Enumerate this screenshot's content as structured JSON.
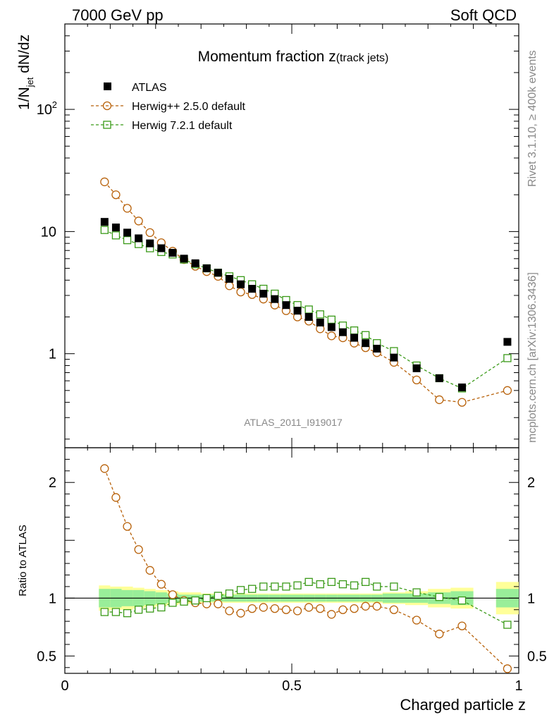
{
  "chart_data": {
    "type": "scatter",
    "header_left": "7000 GeV pp",
    "header_right": "Soft QCD",
    "title_main": "Momentum fraction ",
    "title_var": "z",
    "title_sub": "(track jets)",
    "ylabel_main": "1/N",
    "ylabel_sub": "jet",
    "ylabel_rest": " dN/dz",
    "ratio_ylabel": "Ratio to ATLAS",
    "xlabel": "Charged particle z",
    "analysis_id": "ATLAS_2011_I919017",
    "side_rivet": "Rivet 3.1.10, ≥ 400k events",
    "side_mcplots": "mcplots.cern.ch [arXiv:1306.3436]",
    "xlim": [
      0,
      1
    ],
    "ylim_log": [
      0.17,
      500
    ],
    "ratio_ylim": [
      0.35,
      2.3
    ],
    "x_ticks": [
      {
        "value": 0,
        "label": "0"
      },
      {
        "value": 0.5,
        "label": "0.5"
      },
      {
        "value": 1,
        "label": "1"
      }
    ],
    "y_ticks": [
      {
        "value": 1,
        "label": "1",
        "sup": ""
      },
      {
        "value": 10,
        "label": "10",
        "sup": ""
      },
      {
        "value": 100,
        "label": "10",
        "sup": "2"
      }
    ],
    "ratio_ticks": [
      {
        "value": 0.5,
        "label": "0.5"
      },
      {
        "value": 1,
        "label": "1"
      },
      {
        "value": 2,
        "label": "2"
      }
    ],
    "x": [
      0.0875,
      0.1125,
      0.1375,
      0.1625,
      0.1875,
      0.2125,
      0.2375,
      0.2625,
      0.2875,
      0.3125,
      0.3375,
      0.3625,
      0.3875,
      0.4125,
      0.4375,
      0.4625,
      0.4875,
      0.5125,
      0.5375,
      0.5625,
      0.5875,
      0.6125,
      0.6375,
      0.6625,
      0.6875,
      0.725,
      0.775,
      0.825,
      0.875,
      0.975
    ],
    "series": [
      {
        "name": "ATLAS",
        "color": "#000000",
        "marker": "filled-square",
        "values": [
          12.0,
          10.8,
          9.8,
          8.8,
          8.0,
          7.3,
          6.7,
          6.0,
          5.5,
          5.0,
          4.6,
          4.1,
          3.7,
          3.4,
          3.1,
          2.8,
          2.5,
          2.25,
          2.0,
          1.8,
          1.65,
          1.5,
          1.35,
          1.22,
          1.1,
          0.93,
          0.76,
          0.63,
          0.53,
          1.25
        ]
      },
      {
        "name": "Herwig++ 2.5.0 default",
        "color": "#b8620b",
        "marker": "open-circle",
        "values": [
          25.5,
          20.0,
          15.5,
          12.2,
          9.8,
          8.1,
          6.9,
          5.9,
          5.2,
          4.7,
          4.3,
          3.6,
          3.2,
          3.05,
          2.8,
          2.5,
          2.25,
          2.0,
          1.85,
          1.6,
          1.4,
          1.35,
          1.22,
          1.12,
          1.02,
          0.85,
          0.61,
          0.42,
          0.4,
          0.5
        ]
      },
      {
        "name": "Herwig 7.2.1 default",
        "color": "#3a9a18",
        "marker": "open-square",
        "values": [
          10.3,
          9.3,
          8.5,
          7.9,
          7.3,
          6.8,
          6.5,
          5.9,
          5.4,
          5.0,
          4.6,
          4.3,
          4.0,
          3.7,
          3.4,
          3.1,
          2.75,
          2.5,
          2.3,
          2.1,
          1.9,
          1.7,
          1.55,
          1.42,
          1.22,
          1.05,
          0.8,
          0.63,
          0.52,
          0.92
        ]
      }
    ],
    "ratio_series": [
      {
        "name": "Herwig++ 2.5.0 default",
        "color": "#b8620b",
        "marker": "open-circle",
        "values": [
          2.12,
          1.87,
          1.62,
          1.42,
          1.24,
          1.12,
          1.03,
          0.98,
          0.96,
          0.95,
          0.95,
          0.89,
          0.87,
          0.91,
          0.92,
          0.91,
          0.9,
          0.89,
          0.92,
          0.91,
          0.86,
          0.9,
          0.91,
          0.93,
          0.93,
          0.9,
          0.81,
          0.69,
          0.76,
          0.39
        ]
      },
      {
        "name": "Herwig 7.2.1 default",
        "color": "#3a9a18",
        "marker": "open-square",
        "values": [
          0.88,
          0.88,
          0.87,
          0.9,
          0.91,
          0.92,
          0.96,
          0.97,
          0.98,
          1.0,
          1.02,
          1.04,
          1.07,
          1.08,
          1.1,
          1.1,
          1.1,
          1.11,
          1.14,
          1.12,
          1.14,
          1.12,
          1.11,
          1.14,
          1.1,
          1.1,
          1.05,
          1.01,
          0.98,
          0.77
        ]
      }
    ],
    "uncertainty_bands": {
      "x_edges": [
        0.075,
        0.1,
        0.125,
        0.15,
        0.175,
        0.2,
        0.225,
        0.25,
        0.275,
        0.3,
        0.325,
        0.35,
        0.375,
        0.4,
        0.425,
        0.45,
        0.475,
        0.5,
        0.525,
        0.55,
        0.575,
        0.6,
        0.625,
        0.65,
        0.675,
        0.7,
        0.75,
        0.8,
        0.85,
        0.9,
        0.95,
        1.0
      ],
      "inner": [
        0.08,
        0.08,
        0.07,
        0.07,
        0.06,
        0.05,
        0.04,
        0.03,
        0.03,
        0.03,
        0.03,
        0.03,
        0.03,
        0.03,
        0.03,
        0.03,
        0.03,
        0.03,
        0.03,
        0.03,
        0.03,
        0.03,
        0.03,
        0.03,
        0.03,
        0.04,
        0.04,
        0.05,
        0.06,
        0.0,
        0.08
      ],
      "outer": [
        0.11,
        0.1,
        0.1,
        0.09,
        0.08,
        0.07,
        0.06,
        0.05,
        0.05,
        0.04,
        0.04,
        0.04,
        0.04,
        0.04,
        0.04,
        0.04,
        0.04,
        0.04,
        0.04,
        0.04,
        0.04,
        0.04,
        0.04,
        0.04,
        0.04,
        0.05,
        0.06,
        0.08,
        0.09,
        0.0,
        0.14
      ]
    }
  }
}
